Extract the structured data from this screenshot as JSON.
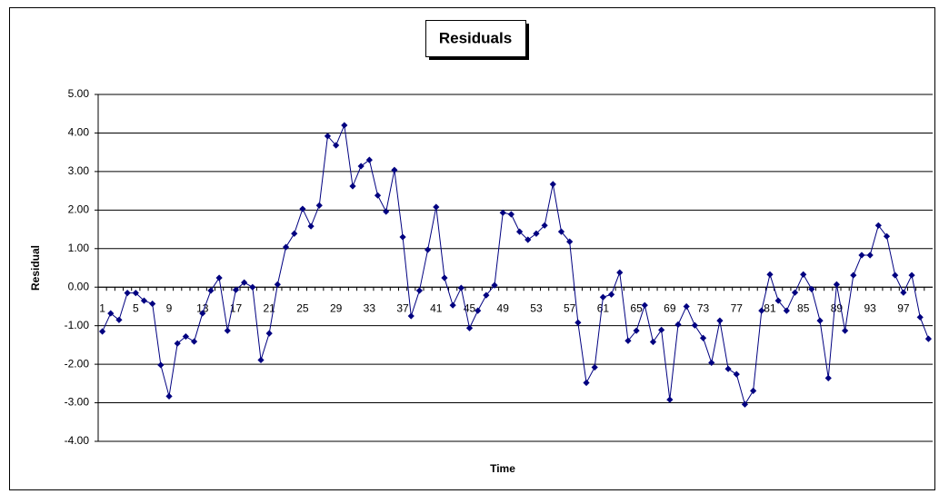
{
  "chart_data": {
    "type": "line",
    "title": "Residuals",
    "xlabel": "Time",
    "ylabel": "Residual",
    "categories": [
      "1",
      null,
      null,
      null,
      "5",
      null,
      null,
      null,
      "9",
      null,
      null,
      null,
      "13",
      null,
      null,
      null,
      "17",
      null,
      null,
      null,
      "21",
      null,
      null,
      null,
      "25",
      null,
      null,
      null,
      "29",
      null,
      null,
      null,
      "33",
      null,
      null,
      null,
      "37",
      null,
      null,
      null,
      "41",
      null,
      null,
      null,
      "45",
      null,
      null,
      null,
      "49",
      null,
      null,
      null,
      "53",
      null,
      null,
      null,
      "57",
      null,
      null,
      null,
      "61",
      null,
      null,
      null,
      "65",
      null,
      null,
      null,
      "69",
      null,
      null,
      null,
      "73",
      null,
      null,
      null,
      "77",
      null,
      null,
      null,
      "81",
      null,
      null,
      null,
      "85",
      null,
      null,
      null,
      "89",
      null,
      null,
      null,
      "93",
      null,
      null,
      null,
      "97",
      null,
      null,
      null
    ],
    "series": [
      {
        "name": "Residual",
        "color": "#000080",
        "values": [
          -1.15,
          -0.68,
          -0.85,
          -0.15,
          -0.15,
          -0.35,
          -0.43,
          -2.02,
          -2.83,
          -1.46,
          -1.28,
          -1.41,
          -0.68,
          -0.09,
          0.24,
          -1.13,
          -0.07,
          0.12,
          0.0,
          -1.89,
          -1.2,
          0.07,
          1.04,
          1.39,
          2.03,
          1.58,
          2.12,
          3.92,
          3.68,
          4.2,
          2.62,
          3.14,
          3.3,
          2.38,
          1.96,
          3.04,
          1.3,
          -0.75,
          -0.09,
          0.97,
          2.08,
          0.24,
          -0.47,
          -0.02,
          -1.06,
          -0.61,
          -0.21,
          0.05,
          1.93,
          1.89,
          1.44,
          1.23,
          1.39,
          1.6,
          2.67,
          1.44,
          1.18,
          -0.92,
          -2.48,
          -2.08,
          -0.26,
          -0.19,
          0.38,
          -1.39,
          -1.13,
          -0.47,
          -1.42,
          -1.11,
          -2.92,
          -0.97,
          -0.5,
          -0.99,
          -1.32,
          -1.96,
          -0.87,
          -2.12,
          -2.26,
          -3.04,
          -2.69,
          -0.61,
          0.33,
          -0.35,
          -0.61,
          -0.14,
          0.33,
          -0.05,
          -0.87,
          -2.36,
          0.07,
          -1.13,
          0.31,
          0.83,
          0.83,
          1.6,
          1.32,
          0.31,
          -0.14,
          0.31,
          -0.78,
          -1.34
        ]
      }
    ],
    "ylim": [
      -4,
      5
    ],
    "yticks": [
      {
        "value": -4,
        "label": "-4.00"
      },
      {
        "value": -3,
        "label": "-3.00"
      },
      {
        "value": -2,
        "label": "-2.00"
      },
      {
        "value": -1,
        "label": "-1.00"
      },
      {
        "value": 0,
        "label": "0.00"
      },
      {
        "value": 1,
        "label": "1.00"
      },
      {
        "value": 2,
        "label": "2.00"
      },
      {
        "value": 3,
        "label": "3.00"
      },
      {
        "value": 4,
        "label": "4.00"
      },
      {
        "value": 5,
        "label": "5.00"
      }
    ],
    "grid": true,
    "marker": "diamond"
  }
}
